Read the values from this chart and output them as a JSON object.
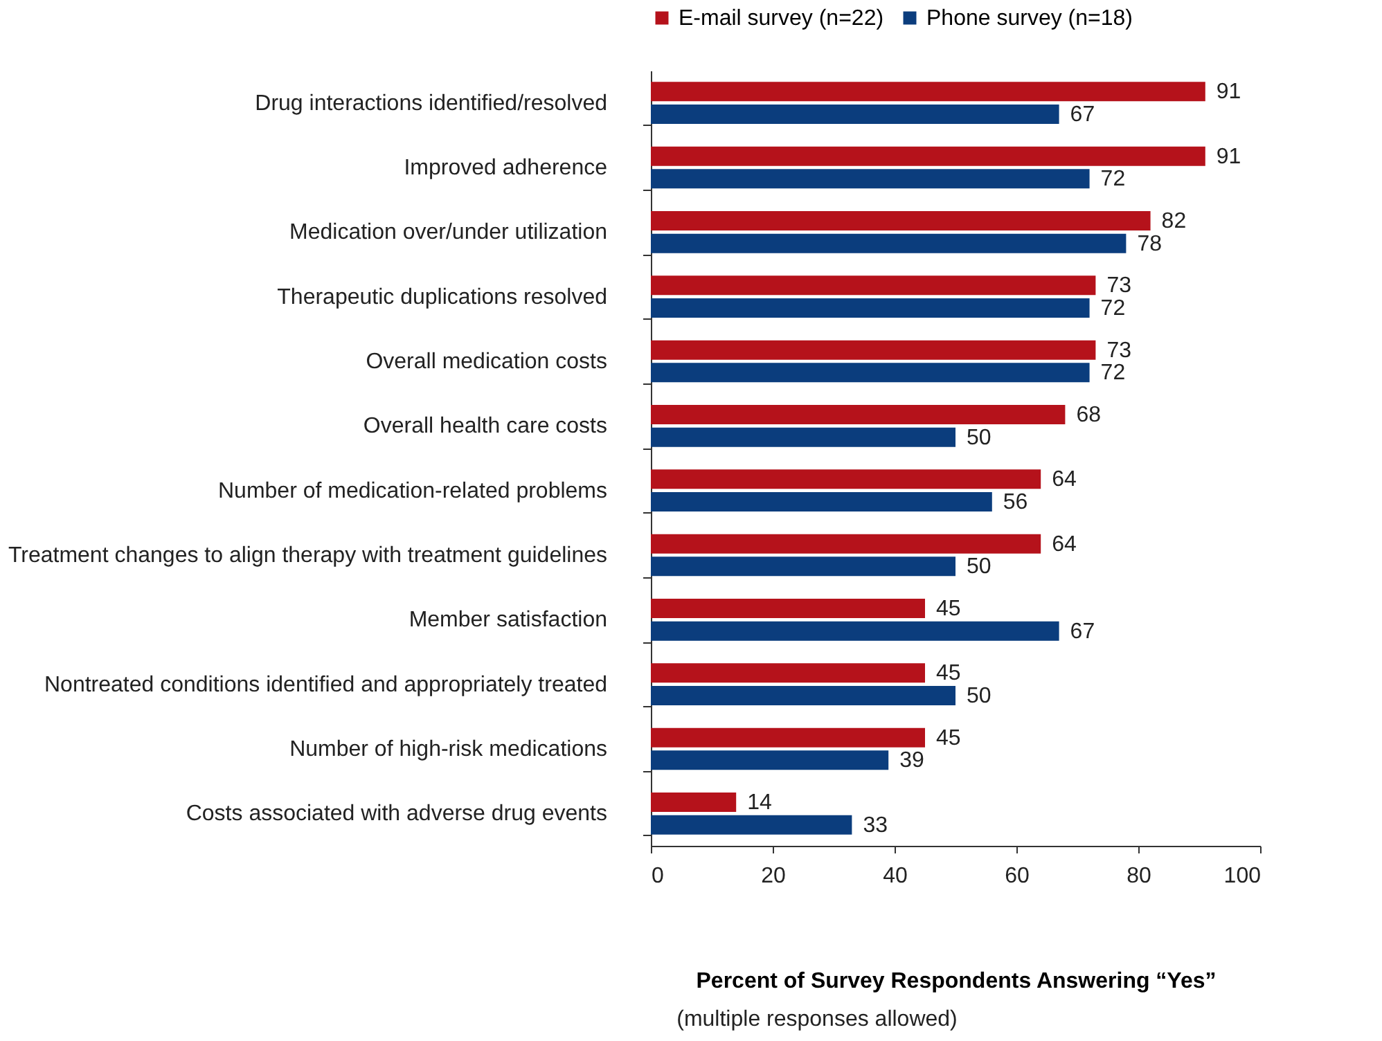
{
  "chart_data": {
    "type": "bar",
    "orientation": "horizontal",
    "xlabel": "Percent of Survey Respondents Answering “Yes”",
    "annotations": [
      "(multiple responses allowed)"
    ],
    "categories": [
      "Drug interactions identified/resolved",
      "Improved adherence",
      "Medication over/under utilization",
      "Therapeutic duplications resolved",
      "Overall medication costs",
      "Overall health care costs",
      "Number of medication-related problems",
      "Treatment changes to align therapy with treatment guidelines",
      "Member satisfaction",
      "Nontreated conditions identified and appropriately treated",
      "Number of high-risk medications",
      "Costs associated with adverse drug events"
    ],
    "series": [
      {
        "name": "E-mail survey (n=22)",
        "color": "#b5121b",
        "values": [
          91,
          91,
          82,
          73,
          73,
          68,
          64,
          64,
          45,
          45,
          45,
          14
        ]
      },
      {
        "name": "Phone survey (n=18)",
        "color": "#0b3d7d",
        "values": [
          67,
          72,
          78,
          72,
          72,
          50,
          56,
          50,
          67,
          50,
          39,
          33
        ]
      }
    ],
    "xlim": [
      0,
      100
    ],
    "xticks": [
      0,
      20,
      40,
      60,
      80,
      100
    ],
    "grid": false,
    "legend": "top",
    "data_labels": true
  }
}
